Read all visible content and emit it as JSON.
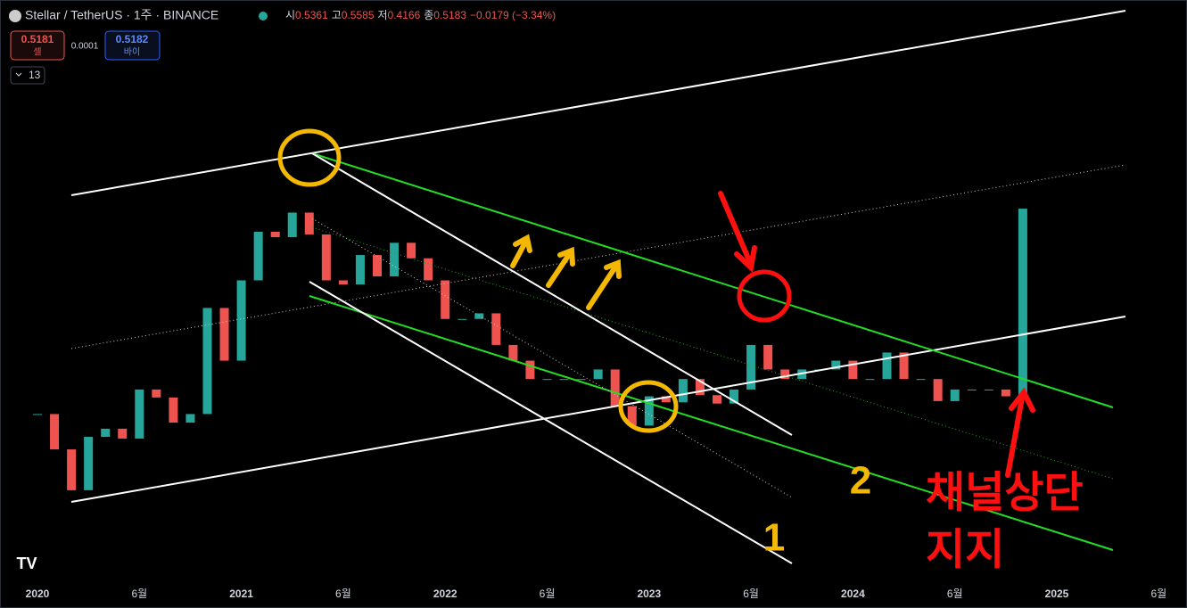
{
  "header": {
    "symbol": "Stellar / TetherUS · 1주 · BINANCE",
    "ohlc": [
      {
        "label": "시",
        "value": "0.5361"
      },
      {
        "label": "고",
        "value": "0.5585"
      },
      {
        "label": "저",
        "value": "0.4166"
      },
      {
        "label": "종",
        "value": "0.5183"
      }
    ],
    "change": "−0.0179 (−3.34%)"
  },
  "trade": {
    "sell_price": "0.5181",
    "sell_label": "셀",
    "spread": "0.0001",
    "buy_price": "0.5182",
    "buy_label": "바이",
    "indicator_count": "13"
  },
  "chart_data": {
    "type": "candlestick",
    "closes": [
      0.08,
      0.058,
      0.04,
      0.065,
      0.07,
      0.064,
      0.1,
      0.093,
      0.074,
      0.08,
      0.21,
      0.13,
      0.27,
      0.42,
      0.4,
      0.5,
      0.41,
      0.27,
      0.26,
      0.34,
      0.28,
      0.38,
      0.33,
      0.27,
      0.19,
      0.19,
      0.2,
      0.15,
      0.13,
      0.11,
      0.11,
      0.11,
      0.11,
      0.12,
      0.086,
      0.072,
      0.094,
      0.089,
      0.11,
      0.095,
      0.088,
      0.1,
      0.15,
      0.12,
      0.11,
      0.12,
      0.12,
      0.13,
      0.11,
      0.11,
      0.14,
      0.11,
      0.11,
      0.09,
      0.1,
      0.1,
      0.1,
      0.094,
      0.5183
    ],
    "ylim": [
      0.0137,
      3.46
    ],
    "log_scale": true,
    "up_color": "#26a69a",
    "down_color": "#ef5350",
    "x_axis_labels": [
      "2020",
      "6월",
      "2021",
      "6월",
      "2022",
      "6월",
      "2023",
      "6월",
      "2024",
      "6월",
      "2025",
      "6월"
    ]
  },
  "annotations": {
    "label_1": "1",
    "label_2": "2",
    "note_line1": "채널상단",
    "note_line2": "지지"
  }
}
